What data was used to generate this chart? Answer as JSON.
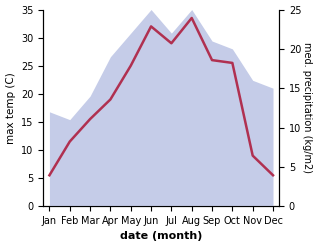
{
  "months": [
    "Jan",
    "Feb",
    "Mar",
    "Apr",
    "May",
    "Jun",
    "Jul",
    "Aug",
    "Sep",
    "Oct",
    "Nov",
    "Dec"
  ],
  "temp": [
    5.5,
    11.5,
    15.5,
    19.0,
    25.0,
    32.0,
    29.0,
    33.5,
    26.0,
    25.5,
    9.0,
    5.5
  ],
  "precip": [
    12,
    11,
    14,
    19,
    22,
    25,
    22,
    25,
    21,
    20,
    16,
    15
  ],
  "temp_color": "#b03050",
  "precip_fill_color": "#c5cce8",
  "ylim_temp": [
    0,
    35
  ],
  "ylim_precip": [
    0,
    25
  ],
  "ylabel_left": "max temp (C)",
  "ylabel_right": "med. precipitation (kg/m2)",
  "xlabel": "date (month)",
  "bg_color": "#ffffff",
  "yticks_left": [
    0,
    5,
    10,
    15,
    20,
    25,
    30,
    35
  ],
  "yticks_right": [
    0,
    5,
    10,
    15,
    20,
    25
  ],
  "temp_scale_max": 35,
  "precip_scale_max": 25
}
